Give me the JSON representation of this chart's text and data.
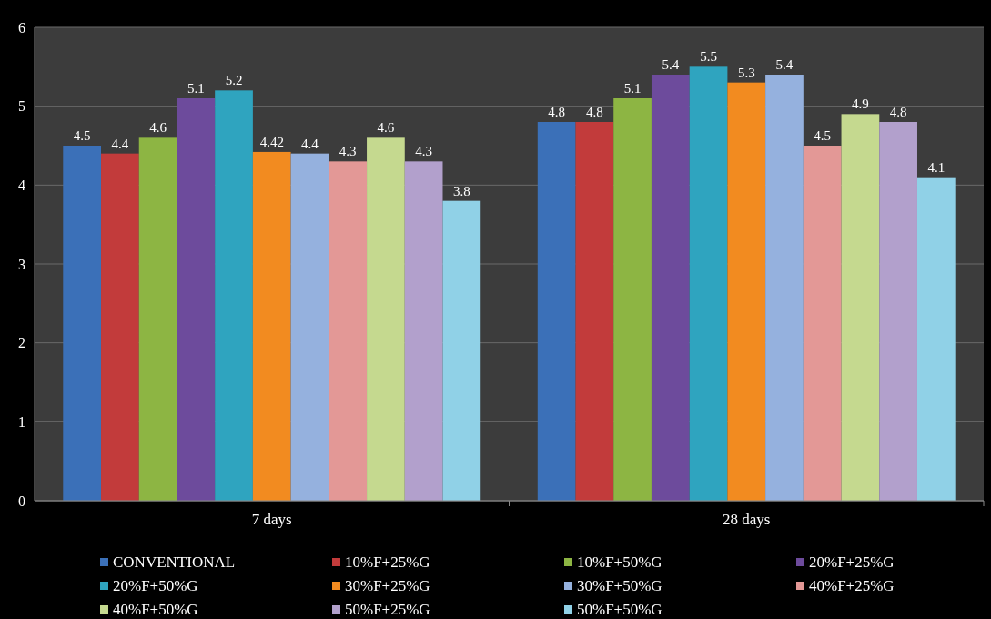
{
  "chart_data": {
    "type": "bar",
    "categories": [
      "7 days",
      "28 days"
    ],
    "series": [
      {
        "name": "CONVENTIONAL",
        "color": "#3b70b8",
        "values": [
          4.5,
          4.8
        ]
      },
      {
        "name": "10%F+25%G",
        "color": "#c23b3b",
        "values": [
          4.4,
          4.8
        ]
      },
      {
        "name": "10%F+50%G",
        "color": "#8db543",
        "values": [
          4.6,
          5.1
        ]
      },
      {
        "name": "20%F+25%G",
        "color": "#6d4b9c",
        "values": [
          5.1,
          5.4
        ]
      },
      {
        "name": "20%F+50%G",
        "color": "#2fa4bf",
        "values": [
          5.2,
          5.5
        ]
      },
      {
        "name": "30%F+25%G",
        "color": "#f28b20",
        "values": [
          4.42,
          5.3
        ]
      },
      {
        "name": "30%F+50%G",
        "color": "#95b1de",
        "values": [
          4.4,
          5.4
        ]
      },
      {
        "name": "40%F+25%G",
        "color": "#e39896",
        "values": [
          4.3,
          4.5
        ]
      },
      {
        "name": "40%F+50%G",
        "color": "#c5d98f",
        "values": [
          4.6,
          4.9
        ]
      },
      {
        "name": "50%F+25%G",
        "color": "#b2a0cc",
        "values": [
          4.3,
          4.8
        ]
      },
      {
        "name": "50%F+50%G",
        "color": "#90d1e7",
        "values": [
          3.8,
          4.1
        ]
      }
    ],
    "ylim": [
      0,
      6
    ],
    "yticks": [
      0,
      1,
      2,
      3,
      4,
      5,
      6
    ],
    "grid": "y",
    "legend": "bottom",
    "data_labels": true
  }
}
